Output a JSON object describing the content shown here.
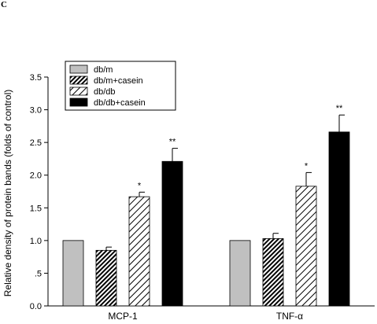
{
  "panel_label": "C",
  "chart_data": {
    "type": "bar",
    "title": "",
    "xlabel": "",
    "ylabel": "Relative density of protein bands (folds of control)",
    "ylim": [
      0,
      3.5
    ],
    "yticks": [
      0.0,
      0.5,
      1.0,
      1.5,
      2.0,
      2.5,
      3.0,
      3.5
    ],
    "ytick_labels": [
      "0.0",
      ".5",
      "1.0",
      "1.5",
      "2.0",
      "2.5",
      "3.0",
      "3.5"
    ],
    "categories": [
      "MCP-1",
      "TNF-α"
    ],
    "series": [
      {
        "name": "db/m",
        "values": [
          1.0,
          1.0
        ],
        "errors": [
          0,
          0
        ],
        "sig": [
          "",
          ""
        ],
        "pattern": "solid-gray"
      },
      {
        "name": "db/m+casein",
        "values": [
          0.85,
          1.03
        ],
        "errors": [
          0.05,
          0.08
        ],
        "sig": [
          "",
          ""
        ],
        "pattern": "dense-hatch"
      },
      {
        "name": "db/db",
        "values": [
          1.67,
          1.83
        ],
        "errors": [
          0.07,
          0.21
        ],
        "sig": [
          "*",
          "*"
        ],
        "pattern": "light-hatch"
      },
      {
        "name": "db/db+casein",
        "values": [
          2.21,
          2.66
        ],
        "errors": [
          0.2,
          0.26
        ],
        "sig": [
          "**",
          "**"
        ],
        "pattern": "solid-black"
      }
    ],
    "legend_position": "top-left",
    "grid": false,
    "colors": {
      "gray": "#c0c0c0",
      "black": "#000000",
      "hatch_bg": "#ffffff"
    }
  }
}
